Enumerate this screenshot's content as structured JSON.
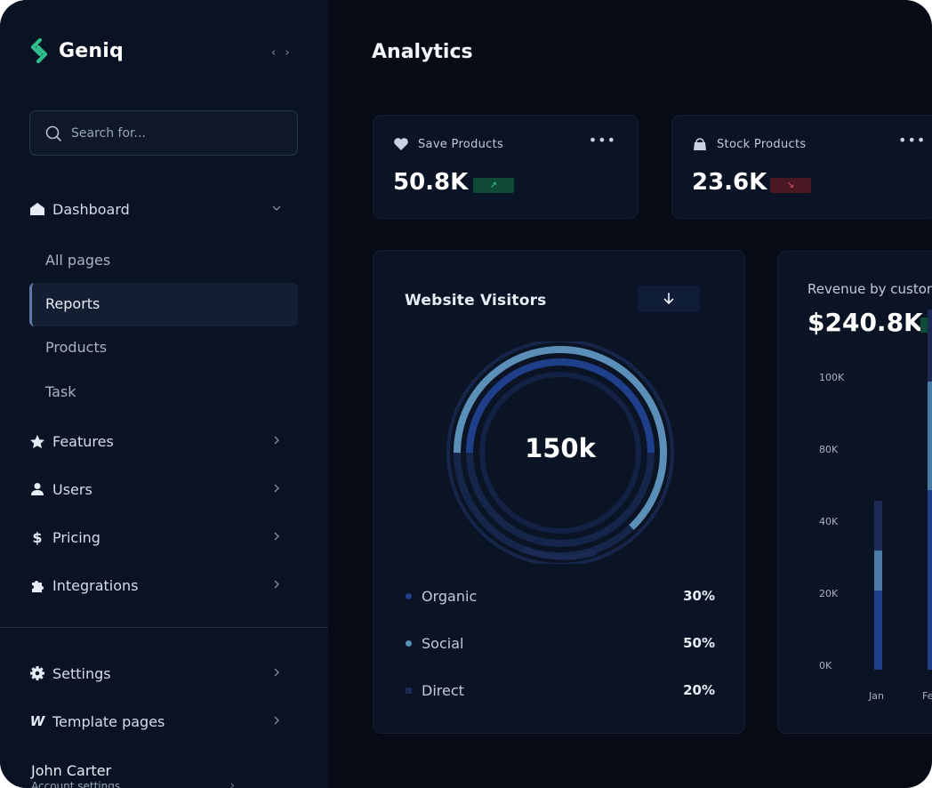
{
  "app": {
    "brand": "Geniq",
    "collapse_icon": "chevrons-left-right-icon"
  },
  "search": {
    "placeholder": "Search for..."
  },
  "sidebar": {
    "dashboard": {
      "label": "Dashboard",
      "icon": "home-icon"
    },
    "dashboard_sub": [
      {
        "label": "All pages"
      },
      {
        "label": "Reports",
        "active": true
      },
      {
        "label": "Products"
      },
      {
        "label": "Task"
      }
    ],
    "items": [
      {
        "label": "Features",
        "icon": "star-icon"
      },
      {
        "label": "Users",
        "icon": "user-icon"
      },
      {
        "label": "Pricing",
        "icon": "dollar-icon"
      },
      {
        "label": "Integrations",
        "icon": "puzzle-icon"
      }
    ],
    "bottom_items": [
      {
        "label": "Settings",
        "icon": "gear-icon"
      },
      {
        "label": "Template pages",
        "icon": "w-icon"
      }
    ],
    "user": {
      "name": "John Carter",
      "sub": "Account settings"
    }
  },
  "main": {
    "title": "Analytics",
    "stats": [
      {
        "label": "Save Products",
        "value": "50.8K",
        "trend": "up",
        "icon": "heart-icon"
      },
      {
        "label": "Stock Products",
        "value": "23.6K",
        "trend": "down",
        "icon": "bag-icon"
      }
    ],
    "visitors": {
      "title": "Website Visitors",
      "total": "150k",
      "legend": [
        {
          "label": "Organic",
          "pct": "30%",
          "color": "#1f3f8a"
        },
        {
          "label": "Social",
          "pct": "50%",
          "color": "#5b8fb8"
        },
        {
          "label": "Direct",
          "pct": "20%",
          "color": "#1d2b54"
        }
      ]
    },
    "revenue": {
      "title": "Revenue by customer type",
      "value": "$240.8K"
    }
  },
  "chart_data": {
    "type": "bar",
    "title": "Revenue by customer type",
    "y_ticks": [
      "100K",
      "80K",
      "40K",
      "20K",
      "0K"
    ],
    "categories": [
      "Jan",
      "Fe"
    ],
    "series": [
      {
        "values": [
          22,
          50
        ]
      },
      {
        "values": [
          11,
          30
        ]
      },
      {
        "values": [
          14,
          20
        ]
      }
    ],
    "colors": [
      "#1f3f8a",
      "#4a7aa6",
      "#1d2b54"
    ],
    "stacked": true
  }
}
